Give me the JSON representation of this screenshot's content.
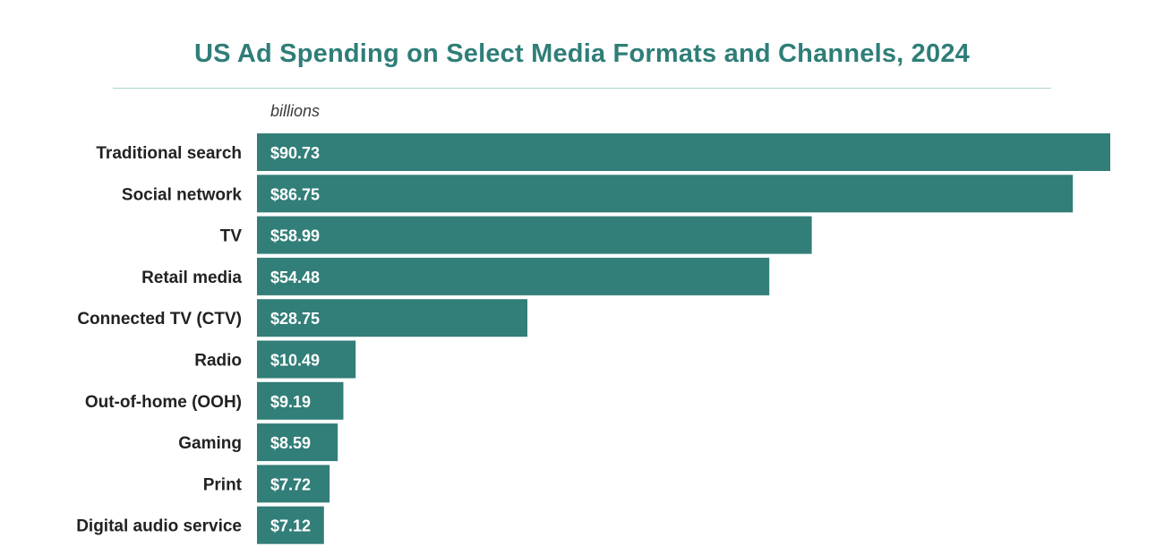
{
  "chart_data": {
    "type": "bar",
    "orientation": "horizontal",
    "title": "US Ad Spending on Select Media Formats and Channels, 2024",
    "unit_label": "billions",
    "xlabel": "",
    "ylabel": "",
    "categories": [
      "Traditional search",
      "Social network",
      "TV",
      "Retail media",
      "Connected TV (CTV)",
      "Radio",
      "Out-of-home (OOH)",
      "Gaming",
      "Print",
      "Digital audio service"
    ],
    "values": [
      90.73,
      86.75,
      58.99,
      54.48,
      28.75,
      10.49,
      9.19,
      8.59,
      7.72,
      7.12
    ],
    "value_labels": [
      "$90.73",
      "$86.75",
      "$58.99",
      "$54.48",
      "$28.75",
      "$10.49",
      "$9.19",
      "$8.59",
      "$7.72",
      "$7.12"
    ],
    "xlim": [
      0,
      90.73
    ],
    "grid": false,
    "legend": "none",
    "colors": {
      "bar": "#327e78",
      "title": "#2f7e78",
      "rule": "#a9d3cf",
      "category_text": "#222222",
      "value_text": "#ffffff"
    }
  }
}
